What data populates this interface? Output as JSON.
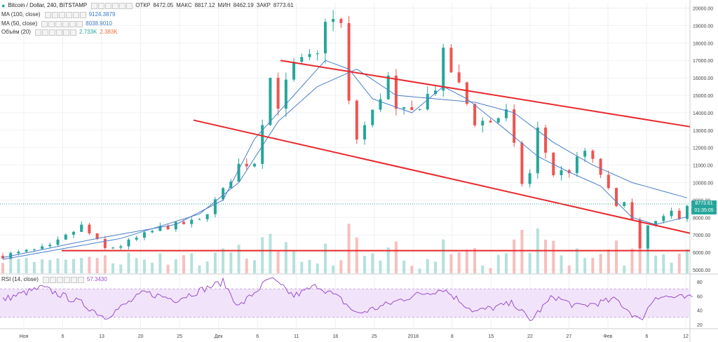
{
  "header": {
    "symbol": "Bitcoin / Dollar, 240, BITSTAMP",
    "ohlc": [
      {
        "label": "ОТКР",
        "value": "8472.05"
      },
      {
        "label": "МАКС",
        "value": "8817.12"
      },
      {
        "label": "МИН",
        "value": "8462.19"
      },
      {
        "label": "ЗАКР",
        "value": "8773.61"
      }
    ]
  },
  "indicators": [
    {
      "label": "MA (100, close)",
      "value": "9124.3879",
      "color": "#3c78c8"
    },
    {
      "label": "MA (50, close)",
      "value": "8038.9010",
      "color": "#3c78c8"
    },
    {
      "label": "Объём (20)",
      "value": "2.733K",
      "value2": "2.383K",
      "color": "#26a69a",
      "color2": "#ef6c3a"
    }
  ],
  "rsi": {
    "label": "RSI (14, close)",
    "value": "57.3430",
    "color": "#9b59b6"
  },
  "price_tags": {
    "last": "8773.61",
    "countdown": "01:35:05"
  },
  "colors": {
    "up": "#26a69a",
    "down": "#ef5350",
    "trend": "#e8282d",
    "ma": "#4a7fc9",
    "rsi": "#9b4dca"
  },
  "chart_data": {
    "type": "candlestick",
    "price_axis": {
      "ticks": [
        "20000.00",
        "19000.00",
        "18000.00",
        "17000.00",
        "16000.00",
        "15000.00",
        "14000.00",
        "13000.00",
        "12000.00",
        "11000.00",
        "10000.00",
        "9000.00",
        "8000.00",
        "7000.00",
        "6000.00",
        "5000.00"
      ],
      "range": [
        4800,
        20300
      ]
    },
    "rsi_axis": {
      "ticks": [
        "80",
        "60",
        "40",
        "20"
      ],
      "range": [
        15,
        90
      ],
      "band": [
        30,
        70
      ]
    },
    "time_axis": {
      "ticks": [
        "Ноя",
        "6",
        "13",
        "20",
        "25",
        "Дек",
        "6",
        "11",
        "18",
        "25",
        "2018",
        "8",
        "15",
        "22",
        "27",
        "Фев",
        "6",
        "12"
      ]
    },
    "price_keypoints": [
      [
        0,
        5800
      ],
      [
        6,
        6300
      ],
      [
        10,
        7500
      ],
      [
        13,
        6200
      ],
      [
        15,
        6400
      ],
      [
        20,
        7400
      ],
      [
        25,
        7800
      ],
      [
        28,
        9500
      ],
      [
        30,
        11000
      ],
      [
        32,
        11200
      ],
      [
        34,
        16000
      ],
      [
        35,
        14500
      ],
      [
        37,
        16700
      ],
      [
        40,
        17200
      ],
      [
        41,
        19500
      ],
      [
        43,
        19000
      ],
      [
        44,
        14500
      ],
      [
        45,
        12500
      ],
      [
        47,
        14000
      ],
      [
        49,
        16000
      ],
      [
        50,
        14000
      ],
      [
        52,
        14000
      ],
      [
        55,
        15500
      ],
      [
        56,
        17300
      ],
      [
        58,
        15500
      ],
      [
        60,
        13500
      ],
      [
        62,
        13500
      ],
      [
        64,
        14000
      ],
      [
        66,
        10000
      ],
      [
        67,
        10500
      ],
      [
        68,
        13000
      ],
      [
        70,
        10500
      ],
      [
        72,
        10700
      ],
      [
        74,
        11800
      ],
      [
        76,
        10500
      ],
      [
        78,
        8500
      ],
      [
        79,
        9100
      ],
      [
        80,
        7800
      ],
      [
        81,
        6100
      ],
      [
        82,
        7500
      ],
      [
        84,
        7900
      ],
      [
        85,
        8300
      ],
      [
        86,
        8100
      ],
      [
        87,
        8773
      ]
    ],
    "ma100_keypoints": [
      [
        0,
        5600
      ],
      [
        15,
        6800
      ],
      [
        25,
        8200
      ],
      [
        30,
        10000
      ],
      [
        35,
        13500
      ],
      [
        40,
        15500
      ],
      [
        45,
        16500
      ],
      [
        50,
        15000
      ],
      [
        55,
        14800
      ],
      [
        60,
        14600
      ],
      [
        65,
        14000
      ],
      [
        70,
        12300
      ],
      [
        75,
        11000
      ],
      [
        80,
        10000
      ],
      [
        87,
        9124
      ]
    ],
    "ma50_keypoints": [
      [
        0,
        5700
      ],
      [
        12,
        6800
      ],
      [
        22,
        7600
      ],
      [
        28,
        9000
      ],
      [
        32,
        12500
      ],
      [
        37,
        15000
      ],
      [
        41,
        17000
      ],
      [
        44,
        16500
      ],
      [
        47,
        14800
      ],
      [
        52,
        14000
      ],
      [
        56,
        15500
      ],
      [
        59,
        14800
      ],
      [
        64,
        13000
      ],
      [
        68,
        11500
      ],
      [
        72,
        10600
      ],
      [
        76,
        9800
      ],
      [
        80,
        8000
      ],
      [
        83,
        7600
      ],
      [
        87,
        8039
      ]
    ],
    "trend_lines": [
      {
        "from": [
          0,
          19600
        ],
        "to": [
          100,
          13200
        ]
      },
      {
        "from": [
          0,
          16100
        ],
        "to": [
          100,
          7100
        ]
      },
      {
        "from": [
          0,
          6100
        ],
        "to": [
          100,
          6100
        ]
      }
    ],
    "rsi_keypoints": [
      [
        0,
        55
      ],
      [
        5,
        72
      ],
      [
        10,
        50
      ],
      [
        13,
        30
      ],
      [
        18,
        65
      ],
      [
        22,
        55
      ],
      [
        28,
        80
      ],
      [
        30,
        45
      ],
      [
        34,
        85
      ],
      [
        37,
        60
      ],
      [
        40,
        75
      ],
      [
        43,
        55
      ],
      [
        45,
        35
      ],
      [
        48,
        45
      ],
      [
        52,
        60
      ],
      [
        56,
        70
      ],
      [
        60,
        38
      ],
      [
        65,
        50
      ],
      [
        67,
        25
      ],
      [
        70,
        60
      ],
      [
        73,
        45
      ],
      [
        78,
        55
      ],
      [
        81,
        25
      ],
      [
        83,
        60
      ],
      [
        87,
        57
      ]
    ]
  }
}
